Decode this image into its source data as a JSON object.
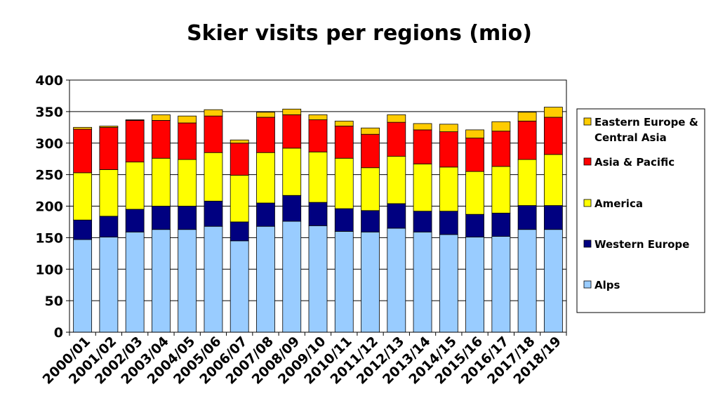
{
  "chart_data": {
    "type": "bar",
    "stacked": true,
    "title": "Skier visits per regions (mio)",
    "xlabel": "",
    "ylabel": "",
    "ylim": [
      0,
      400
    ],
    "yticks": [
      0,
      50,
      100,
      150,
      200,
      250,
      300,
      350,
      400
    ],
    "grid": "horizontal",
    "legend_position": "right",
    "categories": [
      "2000/01",
      "2001/02",
      "2002/03",
      "2003/04",
      "2004/05",
      "2005/06",
      "2006/07",
      "2007/08",
      "2008/09",
      "2009/10",
      "2010/11",
      "2011/12",
      "2012/13",
      "2013/14",
      "2014/15",
      "2015/16",
      "2016/17",
      "2017/18",
      "2018/19"
    ],
    "series": [
      {
        "name": "Alps",
        "color": "#99ccff",
        "values": [
          147,
          151,
          159,
          163,
          163,
          168,
          145,
          168,
          176,
          169,
          160,
          159,
          165,
          159,
          155,
          151,
          152,
          163,
          163
        ]
      },
      {
        "name": "Western Europe",
        "color": "#000080",
        "values": [
          31,
          33,
          36,
          37,
          37,
          40,
          30,
          37,
          41,
          37,
          36,
          34,
          39,
          33,
          37,
          36,
          37,
          38,
          38
        ]
      },
      {
        "name": "America",
        "color": "#ffff00",
        "values": [
          75,
          74,
          75,
          76,
          74,
          77,
          74,
          80,
          75,
          80,
          80,
          68,
          75,
          75,
          70,
          68,
          74,
          73,
          81
        ]
      },
      {
        "name": "Asia & Pacific",
        "color": "#ff0000",
        "values": [
          69,
          67,
          66,
          60,
          58,
          58,
          51,
          56,
          53,
          51,
          51,
          53,
          54,
          54,
          56,
          53,
          56,
          61,
          59
        ]
      },
      {
        "name": "Eastern Europe & Central Asia",
        "color": "#ffcc00",
        "values": [
          3,
          2,
          1,
          9,
          11,
          10,
          5,
          8,
          9,
          8,
          8,
          10,
          12,
          10,
          12,
          13,
          15,
          14,
          16
        ]
      }
    ],
    "legend_order": [
      "Eastern Europe & Central Asia",
      "Asia & Pacific",
      "America",
      "Western Europe",
      "Alps"
    ]
  }
}
